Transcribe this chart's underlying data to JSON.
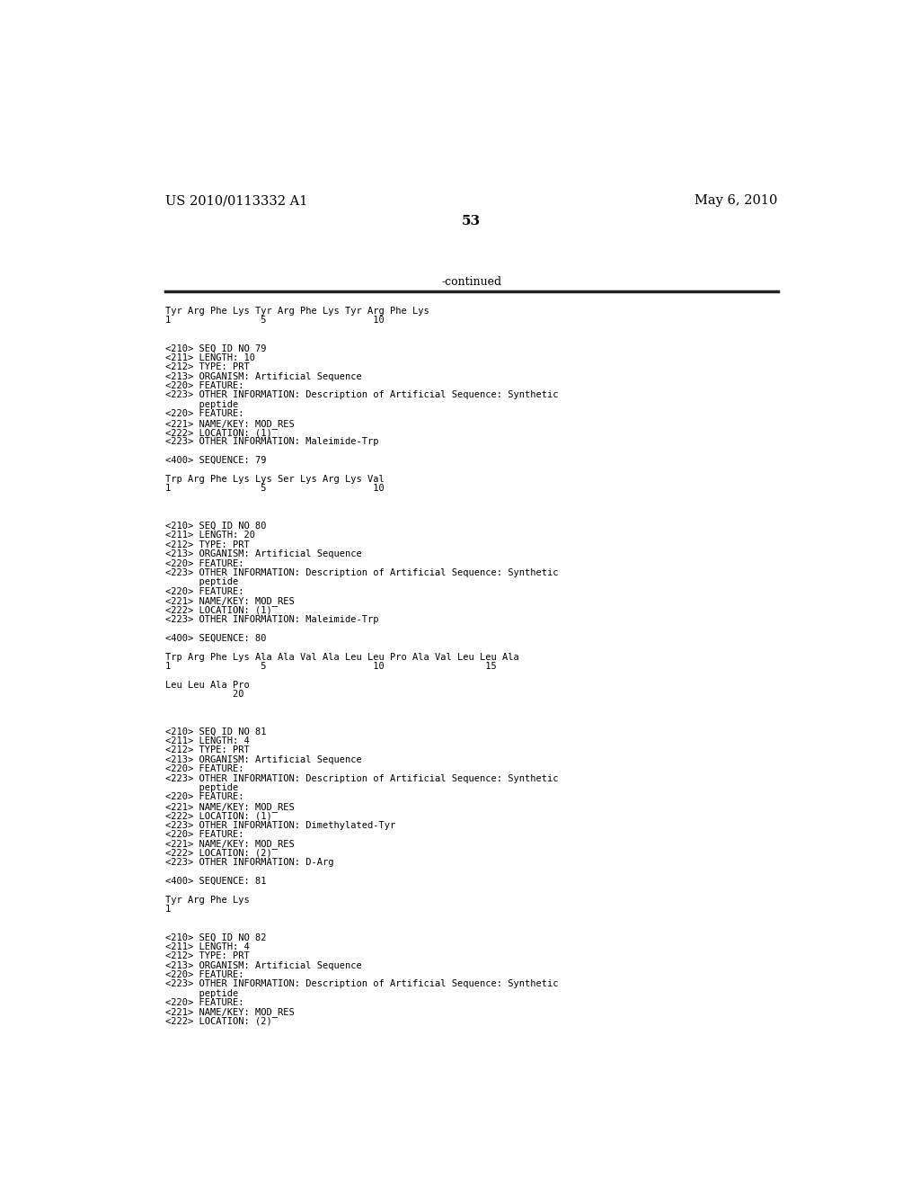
{
  "header_left": "US 2010/0113332 A1",
  "header_right": "May 6, 2010",
  "page_number": "53",
  "continued_text": "-continued",
  "background_color": "#ffffff",
  "text_color": "#000000",
  "body_lines": [
    "Tyr Arg Phe Lys Tyr Arg Phe Lys Tyr Arg Phe Lys",
    "1                5                   10",
    "",
    "",
    "<210> SEQ ID NO 79",
    "<211> LENGTH: 10",
    "<212> TYPE: PRT",
    "<213> ORGANISM: Artificial Sequence",
    "<220> FEATURE:",
    "<223> OTHER INFORMATION: Description of Artificial Sequence: Synthetic",
    "      peptide",
    "<220> FEATURE:",
    "<221> NAME/KEY: MOD_RES",
    "<222> LOCATION: (1)",
    "<223> OTHER INFORMATION: Maleimide-Trp",
    "",
    "<400> SEQUENCE: 79",
    "",
    "Trp Arg Phe Lys Lys Ser Lys Arg Lys Val",
    "1                5                   10",
    "",
    "",
    "",
    "<210> SEQ ID NO 80",
    "<211> LENGTH: 20",
    "<212> TYPE: PRT",
    "<213> ORGANISM: Artificial Sequence",
    "<220> FEATURE:",
    "<223> OTHER INFORMATION: Description of Artificial Sequence: Synthetic",
    "      peptide",
    "<220> FEATURE:",
    "<221> NAME/KEY: MOD_RES",
    "<222> LOCATION: (1)",
    "<223> OTHER INFORMATION: Maleimide-Trp",
    "",
    "<400> SEQUENCE: 80",
    "",
    "Trp Arg Phe Lys Ala Ala Val Ala Leu Leu Pro Ala Val Leu Leu Ala",
    "1                5                   10                  15",
    "",
    "Leu Leu Ala Pro",
    "            20",
    "",
    "",
    "",
    "<210> SEQ ID NO 81",
    "<211> LENGTH: 4",
    "<212> TYPE: PRT",
    "<213> ORGANISM: Artificial Sequence",
    "<220> FEATURE:",
    "<223> OTHER INFORMATION: Description of Artificial Sequence: Synthetic",
    "      peptide",
    "<220> FEATURE:",
    "<221> NAME/KEY: MOD_RES",
    "<222> LOCATION: (1)",
    "<223> OTHER INFORMATION: Dimethylated-Tyr",
    "<220> FEATURE:",
    "<221> NAME/KEY: MOD_RES",
    "<222> LOCATION: (2)",
    "<223> OTHER INFORMATION: D-Arg",
    "",
    "<400> SEQUENCE: 81",
    "",
    "Tyr Arg Phe Lys",
    "1",
    "",
    "",
    "<210> SEQ ID NO 82",
    "<211> LENGTH: 4",
    "<212> TYPE: PRT",
    "<213> ORGANISM: Artificial Sequence",
    "<220> FEATURE:",
    "<223> OTHER INFORMATION: Description of Artificial Sequence: Synthetic",
    "      peptide",
    "<220> FEATURE:",
    "<221> NAME/KEY: MOD_RES",
    "<222> LOCATION: (2)"
  ]
}
